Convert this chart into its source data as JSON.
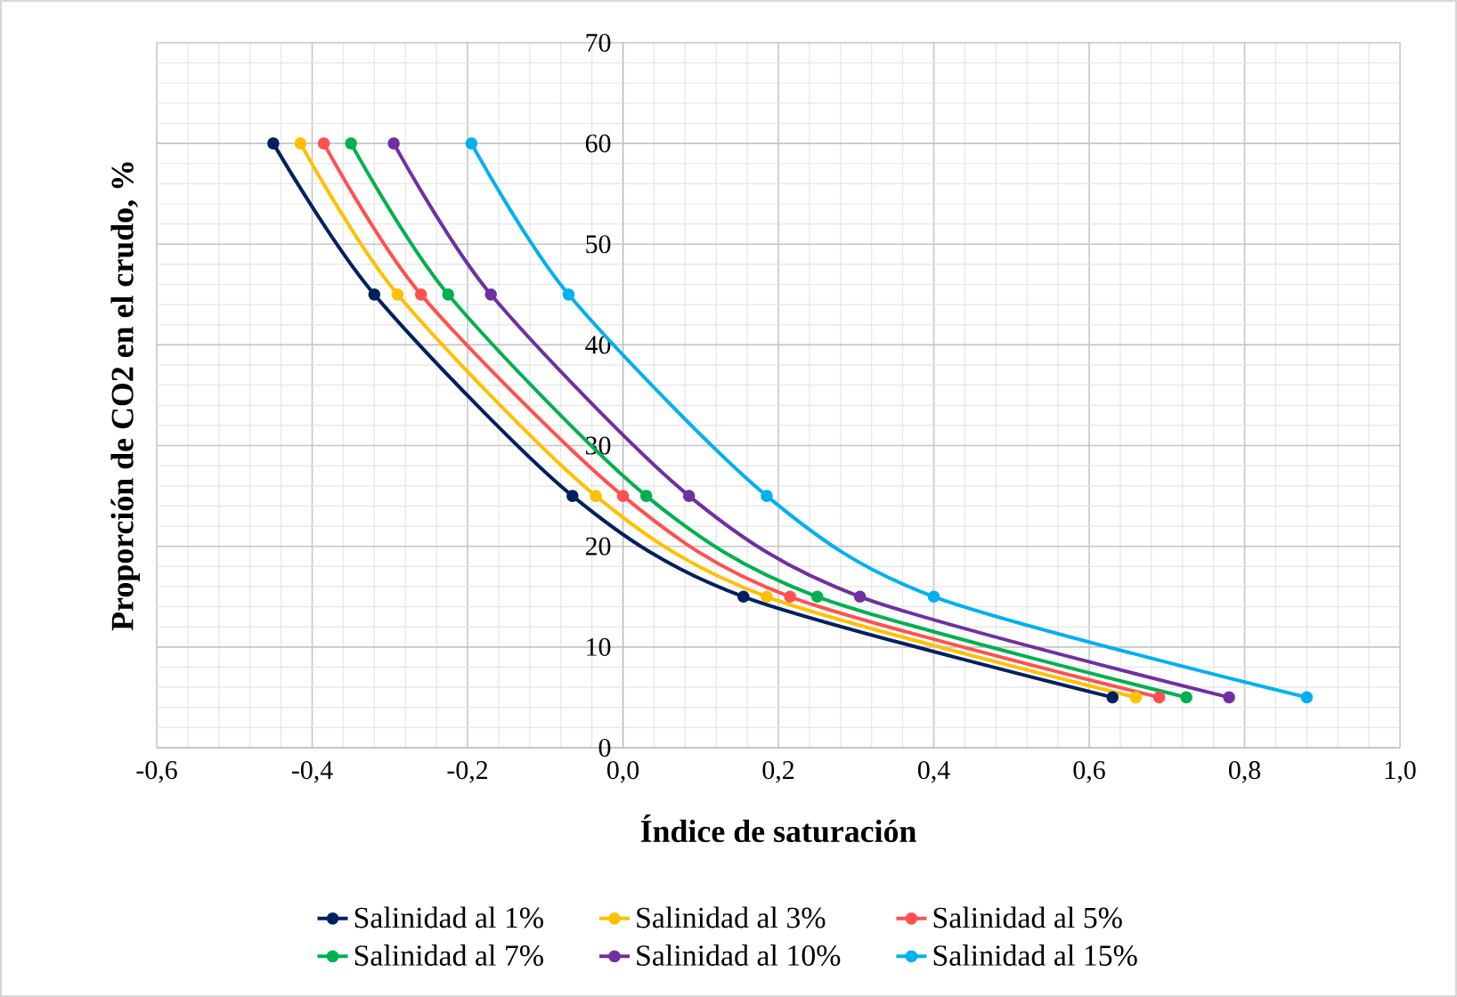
{
  "chart_data": {
    "type": "line",
    "xlabel": "Índice de saturación",
    "ylabel": "Proporción de CO2 en el crudo, %",
    "xlim": [
      -0.6,
      1.0
    ],
    "ylim": [
      0,
      70
    ],
    "xticks": [
      {
        "value": -0.6,
        "label": "-0,6"
      },
      {
        "value": -0.4,
        "label": "-0,4"
      },
      {
        "value": -0.2,
        "label": "-0,2"
      },
      {
        "value": 0.0,
        "label": "0,0"
      },
      {
        "value": 0.2,
        "label": "0,2"
      },
      {
        "value": 0.4,
        "label": "0,4"
      },
      {
        "value": 0.6,
        "label": "0,6"
      },
      {
        "value": 0.8,
        "label": "0,8"
      },
      {
        "value": 1.0,
        "label": "1,0"
      }
    ],
    "yticks": [
      0,
      10,
      20,
      30,
      40,
      50,
      60,
      70
    ],
    "grid": true,
    "legend": "bottom",
    "marker": "circle",
    "line_style": "solid",
    "series": [
      {
        "name": "Salinidad al 1%",
        "color": "#002060",
        "x": [
          -0.45,
          -0.32,
          -0.065,
          0.155,
          0.63
        ],
        "values": [
          60,
          45,
          25,
          15,
          5
        ]
      },
      {
        "name": "Salinidad al 3%",
        "color": "#ffc000",
        "x": [
          -0.415,
          -0.29,
          -0.035,
          0.185,
          0.66
        ],
        "values": [
          60,
          45,
          25,
          15,
          5
        ]
      },
      {
        "name": "Salinidad al 5%",
        "color": "#ff5050",
        "x": [
          -0.385,
          -0.26,
          0.0,
          0.215,
          0.69
        ],
        "values": [
          60,
          45,
          25,
          15,
          5
        ]
      },
      {
        "name": "Salinidad al 7%",
        "color": "#00b050",
        "x": [
          -0.35,
          -0.225,
          0.03,
          0.25,
          0.725
        ],
        "values": [
          60,
          45,
          25,
          15,
          5
        ]
      },
      {
        "name": "Salinidad al 10%",
        "color": "#7030a0",
        "x": [
          -0.295,
          -0.17,
          0.085,
          0.305,
          0.78
        ],
        "values": [
          60,
          45,
          25,
          15,
          5
        ]
      },
      {
        "name": "Salinidad al 15%",
        "color": "#00b0f0",
        "x": [
          -0.195,
          -0.07,
          0.185,
          0.4,
          0.88
        ],
        "values": [
          60,
          45,
          25,
          15,
          5
        ]
      }
    ]
  }
}
